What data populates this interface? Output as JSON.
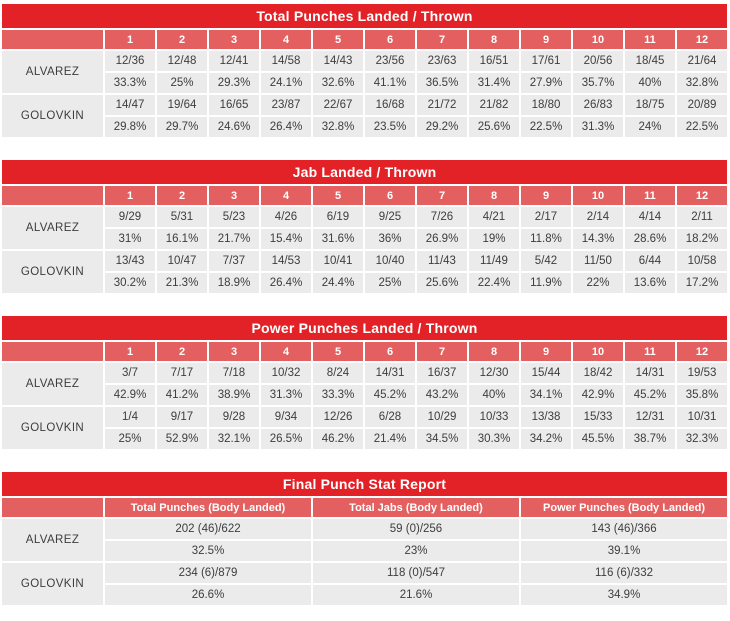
{
  "colors": {
    "title_bar": "#e32227",
    "header_row": "#e45f5f",
    "cell_background": "#ebebeb",
    "cell_text": "#3d3d3d",
    "header_text": "#ffffff"
  },
  "chart_data": [
    {
      "type": "table",
      "title": "Total Punches Landed / Thrown",
      "columns": [
        "1",
        "2",
        "3",
        "4",
        "5",
        "6",
        "7",
        "8",
        "9",
        "10",
        "11",
        "12"
      ],
      "rows": [
        {
          "fighter": "ALVAREZ",
          "landed_thrown": [
            "12/36",
            "12/48",
            "12/41",
            "14/58",
            "14/43",
            "23/56",
            "23/63",
            "16/51",
            "17/61",
            "20/56",
            "18/45",
            "21/64"
          ],
          "accuracy_pct": [
            "33.3%",
            "25%",
            "29.3%",
            "24.1%",
            "32.6%",
            "41.1%",
            "36.5%",
            "31.4%",
            "27.9%",
            "35.7%",
            "40%",
            "32.8%"
          ]
        },
        {
          "fighter": "GOLOVKIN",
          "landed_thrown": [
            "14/47",
            "19/64",
            "16/65",
            "23/87",
            "22/67",
            "16/68",
            "21/72",
            "21/82",
            "18/80",
            "26/83",
            "18/75",
            "20/89"
          ],
          "accuracy_pct": [
            "29.8%",
            "29.7%",
            "24.6%",
            "26.4%",
            "32.8%",
            "23.5%",
            "29.2%",
            "25.6%",
            "22.5%",
            "31.3%",
            "24%",
            "22.5%"
          ]
        }
      ]
    },
    {
      "type": "table",
      "title": "Jab Landed / Thrown",
      "columns": [
        "1",
        "2",
        "3",
        "4",
        "5",
        "6",
        "7",
        "8",
        "9",
        "10",
        "11",
        "12"
      ],
      "rows": [
        {
          "fighter": "ALVAREZ",
          "landed_thrown": [
            "9/29",
            "5/31",
            "5/23",
            "4/26",
            "6/19",
            "9/25",
            "7/26",
            "4/21",
            "2/17",
            "2/14",
            "4/14",
            "2/11"
          ],
          "accuracy_pct": [
            "31%",
            "16.1%",
            "21.7%",
            "15.4%",
            "31.6%",
            "36%",
            "26.9%",
            "19%",
            "11.8%",
            "14.3%",
            "28.6%",
            "18.2%"
          ]
        },
        {
          "fighter": "GOLOVKIN",
          "landed_thrown": [
            "13/43",
            "10/47",
            "7/37",
            "14/53",
            "10/41",
            "10/40",
            "11/43",
            "11/49",
            "5/42",
            "11/50",
            "6/44",
            "10/58"
          ],
          "accuracy_pct": [
            "30.2%",
            "21.3%",
            "18.9%",
            "26.4%",
            "24.4%",
            "25%",
            "25.6%",
            "22.4%",
            "11.9%",
            "22%",
            "13.6%",
            "17.2%"
          ]
        }
      ]
    },
    {
      "type": "table",
      "title": "Power Punches Landed / Thrown",
      "columns": [
        "1",
        "2",
        "3",
        "4",
        "5",
        "6",
        "7",
        "8",
        "9",
        "10",
        "11",
        "12"
      ],
      "rows": [
        {
          "fighter": "ALVAREZ",
          "landed_thrown": [
            "3/7",
            "7/17",
            "7/18",
            "10/32",
            "8/24",
            "14/31",
            "16/37",
            "12/30",
            "15/44",
            "18/42",
            "14/31",
            "19/53"
          ],
          "accuracy_pct": [
            "42.9%",
            "41.2%",
            "38.9%",
            "31.3%",
            "33.3%",
            "45.2%",
            "43.2%",
            "40%",
            "34.1%",
            "42.9%",
            "45.2%",
            "35.8%"
          ]
        },
        {
          "fighter": "GOLOVKIN",
          "landed_thrown": [
            "1/4",
            "9/17",
            "9/28",
            "9/34",
            "12/26",
            "6/28",
            "10/29",
            "10/33",
            "13/38",
            "15/33",
            "12/31",
            "10/31"
          ],
          "accuracy_pct": [
            "25%",
            "52.9%",
            "32.1%",
            "26.5%",
            "46.2%",
            "21.4%",
            "34.5%",
            "30.3%",
            "34.2%",
            "45.5%",
            "38.7%",
            "32.3%"
          ]
        }
      ]
    },
    {
      "type": "table",
      "title": "Final Punch Stat Report",
      "columns": [
        "Total Punches (Body Landed)",
        "Total Jabs (Body Landed)",
        "Power Punches (Body Landed)"
      ],
      "rows": [
        {
          "fighter": "ALVAREZ",
          "landed_thrown": [
            "202 (46)/622",
            "59 (0)/256",
            "143 (46)/366"
          ],
          "accuracy_pct": [
            "32.5%",
            "23%",
            "39.1%"
          ]
        },
        {
          "fighter": "GOLOVKIN",
          "landed_thrown": [
            "234 (6)/879",
            "118 (0)/547",
            "116 (6)/332"
          ],
          "accuracy_pct": [
            "26.6%",
            "21.6%",
            "34.9%"
          ]
        }
      ]
    }
  ]
}
